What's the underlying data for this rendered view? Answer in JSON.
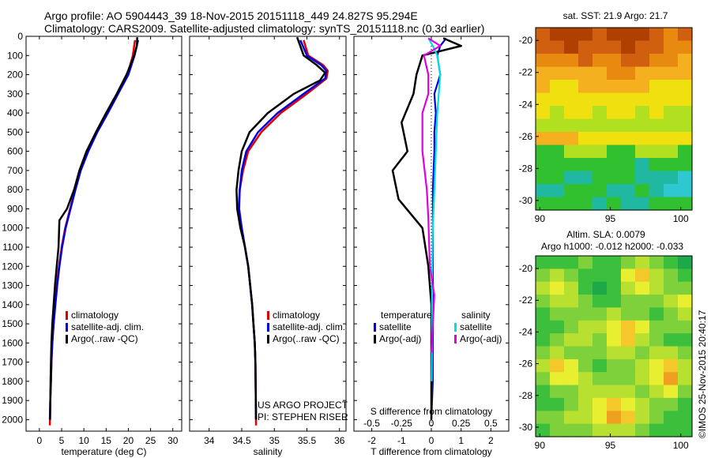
{
  "header": {
    "line1": "Argo profile: AO 5904443_39 18-Nov-2015 20151118_449 24.827S 95.294E",
    "line2": "Climatology: CARS2009. Satellite-adjusted climatology: synTS_20151118.nc (0.3d earlier)"
  },
  "credit": "©IMOS 25-Nov-2015 20:40:17",
  "colors": {
    "climatology": "#e00000",
    "satellite": "#0000e0",
    "argo": "#000000",
    "sal_satellite": "#00e0e0",
    "sal_argo": "#e000e0"
  },
  "chart_data": [
    {
      "type": "line",
      "id": "temperature",
      "xlabel": "temperature (deg C)",
      "ylabel": "",
      "xlim": [
        -3,
        32
      ],
      "ylim": [
        2060,
        0
      ],
      "xticks": [
        0,
        5,
        10,
        15,
        20,
        25,
        30
      ],
      "yticks": [
        0,
        100,
        200,
        300,
        400,
        500,
        600,
        700,
        800,
        900,
        1000,
        1100,
        1200,
        1300,
        1400,
        1500,
        1600,
        1700,
        1800,
        1900,
        2000
      ],
      "legend": [
        "climatology",
        "satellite-adj. clim.",
        "Argo(..raw -QC)"
      ],
      "legend_placement": "lower-center",
      "series": [
        {
          "name": "climatology",
          "color_key": "climatology",
          "x": [
            21.5,
            21.0,
            19.8,
            17.5,
            15.2,
            12.8,
            10.8,
            9.2,
            8.0,
            6.9,
            5.8,
            5.0,
            4.4,
            3.9,
            3.5,
            3.2,
            2.9,
            2.7,
            2.6,
            2.45,
            2.35
          ],
          "y": [
            20,
            100,
            200,
            300,
            400,
            500,
            600,
            700,
            800,
            900,
            1000,
            1100,
            1200,
            1300,
            1400,
            1500,
            1600,
            1700,
            1800,
            1900,
            2030
          ]
        },
        {
          "name": "satellite-adj. clim.",
          "color_key": "satellite",
          "x": [
            22.2,
            21.4,
            20.0,
            17.7,
            15.4,
            13.0,
            11.0,
            9.3,
            8.1,
            7.0,
            5.9,
            5.1,
            4.5,
            4.0,
            3.6,
            3.2,
            2.9,
            2.7,
            2.6,
            2.45,
            2.35
          ],
          "y": [
            20,
            100,
            200,
            300,
            400,
            500,
            600,
            700,
            800,
            900,
            1000,
            1100,
            1200,
            1300,
            1400,
            1500,
            1600,
            1700,
            1800,
            1900,
            2000
          ]
        },
        {
          "name": "Argo(..raw -QC)",
          "color_key": "argo",
          "x": [
            22.0,
            21.9,
            21.3,
            19.6,
            17.4,
            15.0,
            12.7,
            10.6,
            9.0,
            7.8,
            6.2,
            4.5,
            4.3,
            3.9,
            3.5,
            3.2,
            2.9,
            2.7,
            2.6,
            2.5,
            2.4
          ],
          "y": [
            5,
            50,
            100,
            200,
            300,
            400,
            500,
            600,
            700,
            800,
            900,
            960,
            1100,
            1200,
            1300,
            1400,
            1500,
            1600,
            1700,
            1800,
            2000
          ]
        }
      ]
    },
    {
      "type": "line",
      "id": "salinity",
      "xlabel": "salinity",
      "ylabel": "",
      "xlim": [
        33.7,
        36.1
      ],
      "ylim": [
        2060,
        0
      ],
      "xticks": [
        34,
        34.5,
        35,
        35.5,
        36
      ],
      "legend": [
        "climatology",
        "satellite-adj. clim.",
        "Argo(..raw -QC)"
      ],
      "legend_placement": "lower-right",
      "annotations": [
        "US ARGO PROJECT",
        "PI: STEPHEN RISER"
      ],
      "series": [
        {
          "name": "climatology",
          "color_key": "climatology",
          "x": [
            35.45,
            35.52,
            35.75,
            35.82,
            35.8,
            35.5,
            35.1,
            34.8,
            34.6,
            34.52,
            34.47,
            34.45,
            34.5,
            34.55,
            34.6,
            34.63,
            34.66,
            34.68,
            34.7,
            34.71,
            34.72
          ],
          "y": [
            20,
            100,
            150,
            180,
            220,
            300,
            400,
            500,
            600,
            700,
            800,
            900,
            1000,
            1100,
            1200,
            1300,
            1400,
            1500,
            1600,
            1700,
            2030
          ]
        },
        {
          "name": "satellite-adj. clim.",
          "color_key": "satellite",
          "x": [
            35.4,
            35.5,
            35.72,
            35.8,
            35.78,
            35.45,
            35.05,
            34.75,
            34.57,
            34.5,
            34.47,
            34.46,
            34.5,
            34.55,
            34.6,
            34.63,
            34.66,
            34.68,
            34.7,
            34.71,
            34.72
          ],
          "y": [
            20,
            100,
            150,
            180,
            220,
            300,
            400,
            500,
            600,
            700,
            800,
            900,
            1000,
            1100,
            1200,
            1300,
            1400,
            1500,
            1600,
            1700,
            2000
          ]
        },
        {
          "name": "Argo(..raw -QC)",
          "color_key": "argo",
          "x": [
            35.35,
            35.45,
            35.65,
            35.78,
            35.7,
            35.3,
            34.9,
            34.62,
            34.5,
            34.45,
            34.42,
            34.43,
            34.48,
            34.55,
            34.6,
            34.63,
            34.66,
            34.68,
            34.7,
            34.71,
            34.72
          ],
          "y": [
            5,
            100,
            150,
            190,
            230,
            300,
            400,
            500,
            600,
            700,
            800,
            900,
            1000,
            1100,
            1200,
            1300,
            1400,
            1500,
            1600,
            1700,
            2000
          ]
        }
      ]
    },
    {
      "type": "line",
      "id": "difference",
      "xlabel": "T difference from climatology",
      "xlabel2": "S difference from climatology",
      "xlim": [
        -2.6,
        2.6
      ],
      "ylim": [
        2060,
        0
      ],
      "xticks": [
        -2,
        -1,
        0,
        1,
        2
      ],
      "xticks2": [
        -0.5,
        -0.25,
        0,
        0.25,
        0.5
      ],
      "legend_temperature_title": "temperature",
      "legend_salinity_title": "salinity",
      "legend_temperature": [
        "satellite",
        "Argo(-adj)"
      ],
      "legend_salinity": [
        "satellite",
        "Argo(-adj)"
      ],
      "zero_line": "dotted",
      "series": [
        {
          "name": "temperature satellite",
          "color_key": "satellite",
          "x": [
            0.5,
            0.3,
            0.2,
            0.3,
            0.1,
            0.15,
            0.1,
            0.1,
            0.05,
            0.05,
            0.05,
            0.05,
            0.05,
            0.05,
            0.0
          ],
          "y": [
            10,
            50,
            100,
            200,
            300,
            400,
            500,
            600,
            800,
            1000,
            1200,
            1400,
            1600,
            1800,
            2000
          ]
        },
        {
          "name": "temperature Argo(-adj)",
          "color_key": "argo",
          "x": [
            0.4,
            1.0,
            -0.3,
            -0.5,
            -0.6,
            -1.0,
            -0.8,
            -1.3,
            -1.1,
            -0.3,
            -0.1,
            0.0,
            0.0,
            0.0,
            0.0
          ],
          "y": [
            10,
            50,
            100,
            200,
            300,
            450,
            600,
            700,
            850,
            1000,
            1200,
            1400,
            1600,
            1800,
            2000
          ]
        },
        {
          "name": "salinity satellite",
          "color_key": "sal_satellite",
          "x": [
            -0.1,
            0.05,
            0.2,
            0.3,
            0.25,
            0.2,
            0.15,
            0.1,
            0.05,
            0.03,
            0.02,
            0.02,
            0.01
          ],
          "y": [
            10,
            50,
            100,
            200,
            300,
            400,
            600,
            800,
            1000,
            1200,
            1400,
            1600,
            1800
          ]
        },
        {
          "name": "salinity Argo(-adj)",
          "color_key": "sal_argo",
          "x": [
            -0.1,
            0.3,
            -0.25,
            -0.1,
            -0.1,
            -0.3,
            -0.3,
            -0.15,
            -0.1,
            -0.05,
            0.1,
            0.05,
            0.0
          ],
          "y": [
            10,
            50,
            100,
            200,
            300,
            400,
            600,
            800,
            950,
            1200,
            1350,
            1500,
            1650
          ]
        }
      ]
    },
    {
      "type": "heatmap",
      "id": "sst-map",
      "title": "sat. SST: 21.9 Argo: 21.7",
      "xlim": [
        89.7,
        100.8
      ],
      "ylim": [
        -30.6,
        -19.2
      ],
      "xticks": [
        90,
        95,
        100
      ],
      "yticks": [
        -20,
        -22,
        -24,
        -26,
        -28,
        -30
      ],
      "palette": [
        "#b04000",
        "#d06010",
        "#e88a10",
        "#f5b020",
        "#f0e010",
        "#b0e020",
        "#30c030",
        "#20b8a0",
        "#30c8d0"
      ],
      "rows_top_to_bottom": [
        [
          1,
          0,
          0,
          0,
          1,
          0,
          0,
          0,
          1,
          2,
          1
        ],
        [
          1,
          1,
          0,
          1,
          1,
          1,
          0,
          1,
          1,
          2,
          2
        ],
        [
          2,
          2,
          2,
          1,
          2,
          2,
          1,
          1,
          2,
          2,
          3
        ],
        [
          3,
          3,
          3,
          3,
          3,
          2,
          2,
          3,
          3,
          3,
          3
        ],
        [
          3,
          4,
          4,
          3,
          3,
          3,
          3,
          3,
          4,
          4,
          4
        ],
        [
          4,
          4,
          4,
          4,
          4,
          4,
          4,
          4,
          4,
          4,
          4
        ],
        [
          4,
          5,
          4,
          4,
          5,
          4,
          4,
          5,
          4,
          5,
          5
        ],
        [
          5,
          5,
          5,
          5,
          5,
          5,
          5,
          5,
          5,
          5,
          5
        ],
        [
          3,
          3,
          3,
          4,
          4,
          4,
          4,
          4,
          4,
          4,
          4
        ],
        [
          6,
          6,
          5,
          5,
          5,
          6,
          6,
          5,
          5,
          5,
          6
        ],
        [
          6,
          6,
          6,
          6,
          6,
          6,
          6,
          7,
          6,
          6,
          6
        ],
        [
          6,
          6,
          7,
          7,
          6,
          6,
          6,
          7,
          7,
          7,
          8
        ],
        [
          7,
          7,
          6,
          6,
          6,
          7,
          7,
          6,
          7,
          8,
          8
        ],
        [
          6,
          6,
          6,
          6,
          7,
          6,
          7,
          7,
          6,
          6,
          6
        ]
      ]
    },
    {
      "type": "heatmap",
      "id": "sla-map",
      "title": "Altim. SLA: 0.0079",
      "subtitle": "Argo h1000: -0.012 h2000: -0.033",
      "xlim": [
        89.7,
        100.8
      ],
      "ylim": [
        -30.6,
        -19.2
      ],
      "xticks": [
        90,
        95,
        100
      ],
      "yticks": [
        -20,
        -22,
        -24,
        -26,
        -28,
        -30
      ],
      "palette": [
        "#1fa84a",
        "#3cbf3c",
        "#7ed13a",
        "#b8e030",
        "#e8ee30",
        "#f4c82a",
        "#f0a020"
      ],
      "rows_top_to_bottom": [
        [
          1,
          1,
          1,
          2,
          1,
          1,
          2,
          3,
          2,
          1,
          0
        ],
        [
          2,
          3,
          2,
          1,
          1,
          1,
          4,
          5,
          3,
          2,
          1
        ],
        [
          3,
          4,
          3,
          1,
          0,
          1,
          3,
          4,
          3,
          2,
          2
        ],
        [
          2,
          3,
          3,
          2,
          1,
          1,
          2,
          2,
          2,
          3,
          4
        ],
        [
          1,
          2,
          2,
          2,
          2,
          3,
          2,
          2,
          1,
          2,
          3
        ],
        [
          1,
          1,
          2,
          3,
          3,
          4,
          5,
          4,
          2,
          2,
          2
        ],
        [
          1,
          2,
          3,
          3,
          2,
          4,
          5,
          3,
          2,
          1,
          1
        ],
        [
          2,
          3,
          2,
          2,
          2,
          3,
          3,
          2,
          3,
          3,
          2
        ],
        [
          3,
          5,
          4,
          2,
          1,
          2,
          2,
          3,
          4,
          5,
          3
        ],
        [
          2,
          4,
          4,
          3,
          2,
          2,
          2,
          3,
          4,
          6,
          3
        ],
        [
          1,
          2,
          2,
          3,
          3,
          3,
          3,
          2,
          3,
          4,
          2
        ],
        [
          1,
          1,
          2,
          3,
          4,
          5,
          4,
          3,
          2,
          2,
          1
        ],
        [
          2,
          2,
          3,
          3,
          4,
          6,
          5,
          3,
          2,
          1,
          1
        ],
        [
          1,
          2,
          2,
          2,
          3,
          3,
          3,
          2,
          1,
          1,
          1
        ]
      ]
    }
  ]
}
